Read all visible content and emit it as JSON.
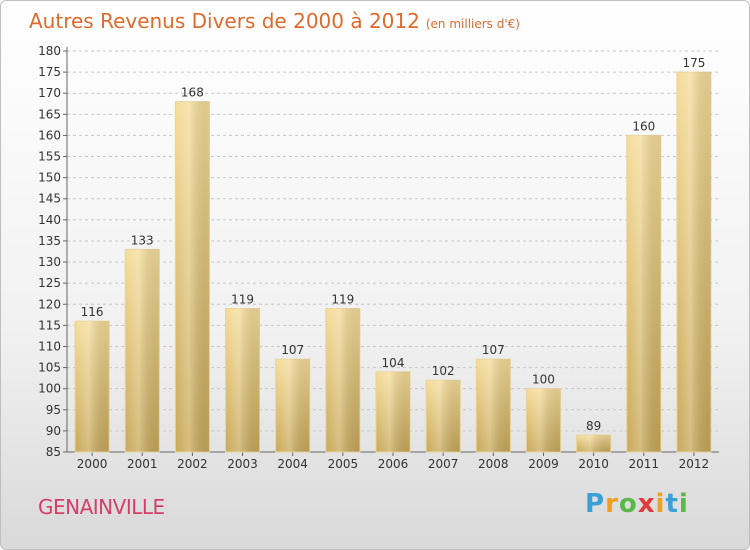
{
  "title": {
    "main": "Autres Revenus Divers de 2000 à 2012",
    "unit": "(en milliers d'€)"
  },
  "footer": {
    "commune": "GENAINVILLE",
    "logo_letters": [
      "P",
      "r",
      "o",
      "x",
      "i",
      "t",
      "i"
    ],
    "logo_colors": [
      "#3aa0d8",
      "#f0a020",
      "#59b848",
      "#e03a3a",
      "#f0a020",
      "#3aa0d8",
      "#59b848"
    ]
  },
  "chart_data": {
    "type": "bar",
    "categories": [
      "2000",
      "2001",
      "2002",
      "2003",
      "2004",
      "2005",
      "2006",
      "2007",
      "2008",
      "2009",
      "2010",
      "2011",
      "2012"
    ],
    "values": [
      116,
      133,
      168,
      119,
      107,
      119,
      104,
      102,
      107,
      100,
      89,
      160,
      175
    ],
    "value_labels": [
      "116",
      "133",
      "168",
      "119",
      "107",
      "119",
      "104",
      "102",
      "107",
      "100",
      "89",
      "160",
      "175"
    ],
    "ylim": [
      85,
      180
    ],
    "yticks": [
      85,
      90,
      95,
      100,
      105,
      110,
      115,
      120,
      125,
      130,
      135,
      140,
      145,
      150,
      155,
      160,
      165,
      170,
      175,
      180
    ],
    "ytick_labels": [
      "85",
      "90",
      "95",
      "100",
      "105",
      "110",
      "115",
      "120",
      "125",
      "130",
      "135",
      "140",
      "145",
      "150",
      "155",
      "160",
      "165",
      "170",
      "175",
      "180"
    ],
    "grid": true,
    "colors": {
      "bar_light": "#f5dc98",
      "bar_dark": "#c8a858",
      "grid": "#c8c8c8"
    }
  }
}
